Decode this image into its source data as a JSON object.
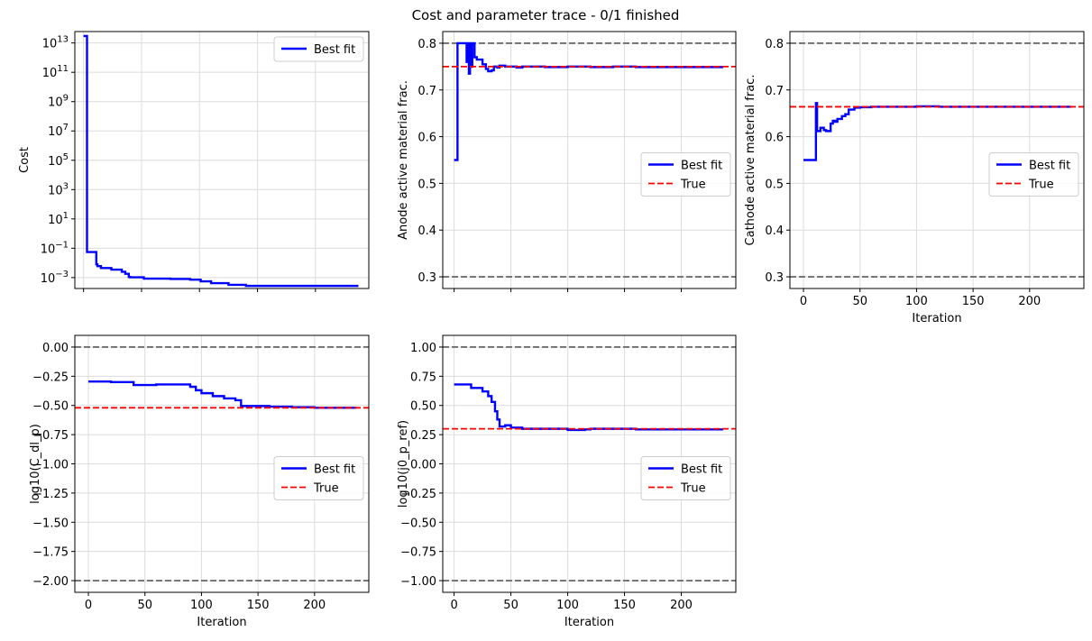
{
  "figure": {
    "title": "Cost and parameter trace - 0/1 finished"
  },
  "chart_data": [
    {
      "id": "cost",
      "type": "line",
      "title": "",
      "xlabel": "",
      "ylabel": "Cost",
      "yscale": "log",
      "xlim": [
        -7.5,
        246
      ],
      "ylim": [
        0.00018,
        60000000000000
      ],
      "xticks": [
        0,
        50,
        100,
        150,
        200
      ],
      "show_xtick_labels": false,
      "yticks": [
        0.001,
        0.1,
        10,
        1000,
        100000,
        10000000,
        1000000000,
        100000000000,
        10000000000000
      ],
      "ytick_labels": [
        {
          "base": "10",
          "exp": "−3"
        },
        {
          "base": "10",
          "exp": "−1"
        },
        {
          "base": "10",
          "exp": "1"
        },
        {
          "base": "10",
          "exp": "3"
        },
        {
          "base": "10",
          "exp": "5"
        },
        {
          "base": "10",
          "exp": "7"
        },
        {
          "base": "10",
          "exp": "9"
        },
        {
          "base": "10",
          "exp": "11"
        },
        {
          "base": "10",
          "exp": "13"
        }
      ],
      "grid": true,
      "legend_position": "top-right",
      "series": [
        {
          "name": "Best fit",
          "color": "#0000ff",
          "style": "solid",
          "step": true,
          "x": [
            0,
            2,
            3,
            7,
            11,
            12,
            15,
            24,
            33,
            36,
            39,
            40,
            52,
            75,
            92,
            101,
            110,
            125,
            140,
            237
          ],
          "y": [
            30000000000000,
            30000000000000,
            0.055,
            0.055,
            0.008,
            0.006,
            0.0045,
            0.0035,
            0.0025,
            0.0018,
            0.0011,
            0.00105,
            0.00085,
            0.0008,
            0.00072,
            0.00055,
            0.00042,
            0.00032,
            0.00027,
            0.00027
          ]
        }
      ]
    },
    {
      "id": "anode",
      "type": "line",
      "title": "",
      "xlabel": "",
      "ylabel": "Anode active material frac.",
      "xlim": [
        -10,
        248
      ],
      "ylim": [
        0.275,
        0.825
      ],
      "xticks": [
        0,
        50,
        100,
        150,
        200
      ],
      "show_xtick_labels": false,
      "yticks": [
        0.3,
        0.4,
        0.5,
        0.6,
        0.7,
        0.8
      ],
      "ytick_labels": [
        "0.3",
        "0.4",
        "0.5",
        "0.6",
        "0.7",
        "0.8"
      ],
      "grid": true,
      "legend_position": "center-right",
      "hlines": [
        {
          "y": 0.8,
          "color": "#6e6e6e",
          "style": "dashed"
        },
        {
          "y": 0.3,
          "color": "#6e6e6e",
          "style": "dashed"
        }
      ],
      "series": [
        {
          "name": "Best fit",
          "color": "#0000ff",
          "style": "solid",
          "step": true,
          "x": [
            0,
            2,
            3,
            10,
            11,
            12,
            13,
            14,
            15,
            16,
            18,
            20,
            25,
            28,
            30,
            33,
            35,
            38,
            40,
            45,
            55,
            60,
            80,
            100,
            120,
            140,
            160,
            180,
            200,
            237
          ],
          "y": [
            0.55,
            0.55,
            0.8,
            0.8,
            0.76,
            0.8,
            0.735,
            0.8,
            0.75,
            0.8,
            0.77,
            0.765,
            0.755,
            0.745,
            0.74,
            0.742,
            0.75,
            0.748,
            0.752,
            0.75,
            0.748,
            0.75,
            0.749,
            0.75,
            0.749,
            0.75,
            0.749,
            0.749,
            0.749,
            0.749
          ]
        },
        {
          "name": "True",
          "color": "#ff0000",
          "style": "dashed",
          "hline": 0.75
        }
      ]
    },
    {
      "id": "cathode",
      "type": "line",
      "title": "",
      "xlabel": "Iteration",
      "ylabel": "Cathode active material frac.",
      "xlim": [
        -12,
        248
      ],
      "ylim": [
        0.275,
        0.825
      ],
      "xticks": [
        0,
        50,
        100,
        150,
        200
      ],
      "show_xtick_labels": true,
      "xtick_labels": [
        "0",
        "50",
        "100",
        "150",
        "200"
      ],
      "yticks": [
        0.3,
        0.4,
        0.5,
        0.6,
        0.7,
        0.8
      ],
      "ytick_labels": [
        "0.3",
        "0.4",
        "0.5",
        "0.6",
        "0.7",
        "0.8"
      ],
      "grid": true,
      "legend_position": "center-right",
      "hlines": [
        {
          "y": 0.8,
          "color": "#6e6e6e",
          "style": "dashed"
        },
        {
          "y": 0.3,
          "color": "#6e6e6e",
          "style": "dashed"
        }
      ],
      "series": [
        {
          "name": "Best fit",
          "color": "#0000ff",
          "style": "solid",
          "step": true,
          "x": [
            0,
            10,
            11,
            12,
            15,
            18,
            20,
            24,
            26,
            28,
            30,
            34,
            37,
            40,
            45,
            50,
            60,
            80,
            100,
            120,
            237
          ],
          "y": [
            0.55,
            0.55,
            0.672,
            0.612,
            0.619,
            0.614,
            0.612,
            0.628,
            0.634,
            0.632,
            0.638,
            0.644,
            0.648,
            0.658,
            0.662,
            0.663,
            0.664,
            0.664,
            0.665,
            0.664,
            0.664
          ]
        },
        {
          "name": "True",
          "color": "#ff0000",
          "style": "dashed",
          "hline": 0.664
        }
      ]
    },
    {
      "id": "c_dl_p",
      "type": "line",
      "title": "",
      "xlabel": "Iteration",
      "ylabel": "log10(C_dl_p)",
      "xlim": [
        -12,
        248
      ],
      "ylim": [
        -2.1,
        0.1
      ],
      "xticks": [
        0,
        50,
        100,
        150,
        200
      ],
      "show_xtick_labels": true,
      "xtick_labels": [
        "0",
        "50",
        "100",
        "150",
        "200"
      ],
      "yticks": [
        0.0,
        -0.25,
        -0.5,
        -0.75,
        -1.0,
        -1.25,
        -1.5,
        -1.75,
        -2.0
      ],
      "ytick_labels": [
        "0.00",
        "−0.25",
        "−0.50",
        "−0.75",
        "−1.00",
        "−1.25",
        "−1.50",
        "−1.75",
        "−2.00"
      ],
      "grid": true,
      "legend_position": "center-right",
      "hlines": [
        {
          "y": 0.0,
          "color": "#6e6e6e",
          "style": "dashed"
        },
        {
          "y": -2.0,
          "color": "#6e6e6e",
          "style": "dashed"
        }
      ],
      "series": [
        {
          "name": "Best fit",
          "color": "#0000ff",
          "style": "solid",
          "step": true,
          "x": [
            0,
            20,
            40,
            60,
            75,
            90,
            95,
            100,
            110,
            120,
            130,
            135,
            140,
            160,
            180,
            200,
            237
          ],
          "y": [
            -0.295,
            -0.3,
            -0.325,
            -0.32,
            -0.32,
            -0.34,
            -0.37,
            -0.395,
            -0.42,
            -0.44,
            -0.455,
            -0.505,
            -0.505,
            -0.51,
            -0.515,
            -0.52,
            -0.52
          ]
        },
        {
          "name": "True",
          "color": "#ff0000",
          "style": "dashed",
          "hline": -0.52
        }
      ]
    },
    {
      "id": "j0_p_ref",
      "type": "line",
      "title": "",
      "xlabel": "Iteration",
      "ylabel": "log10(j0_p_ref)",
      "xlim": [
        -10,
        248
      ],
      "ylim": [
        -1.1,
        1.1
      ],
      "xticks": [
        0,
        50,
        100,
        150,
        200
      ],
      "show_xtick_labels": true,
      "xtick_labels": [
        "0",
        "50",
        "100",
        "150",
        "200"
      ],
      "yticks": [
        1.0,
        0.75,
        0.5,
        0.25,
        0.0,
        -0.25,
        -0.5,
        -0.75,
        -1.0
      ],
      "ytick_labels": [
        "1.00",
        "0.75",
        "0.50",
        "0.25",
        "0.00",
        "−0.25",
        "−0.50",
        "−0.75",
        "−1.00"
      ],
      "grid": true,
      "legend_position": "center-right",
      "hlines": [
        {
          "y": 1.0,
          "color": "#6e6e6e",
          "style": "dashed"
        },
        {
          "y": -1.0,
          "color": "#6e6e6e",
          "style": "dashed"
        }
      ],
      "series": [
        {
          "name": "Best fit",
          "color": "#0000ff",
          "style": "solid",
          "step": true,
          "x": [
            0,
            15,
            25,
            30,
            33,
            36,
            38,
            40,
            45,
            50,
            60,
            80,
            100,
            115,
            120,
            140,
            160,
            237
          ],
          "y": [
            0.68,
            0.65,
            0.62,
            0.58,
            0.53,
            0.45,
            0.38,
            0.32,
            0.33,
            0.31,
            0.3,
            0.3,
            0.29,
            0.295,
            0.3,
            0.3,
            0.295,
            0.295
          ]
        },
        {
          "name": "True",
          "color": "#ff0000",
          "style": "dashed",
          "hline": 0.3
        }
      ]
    }
  ]
}
